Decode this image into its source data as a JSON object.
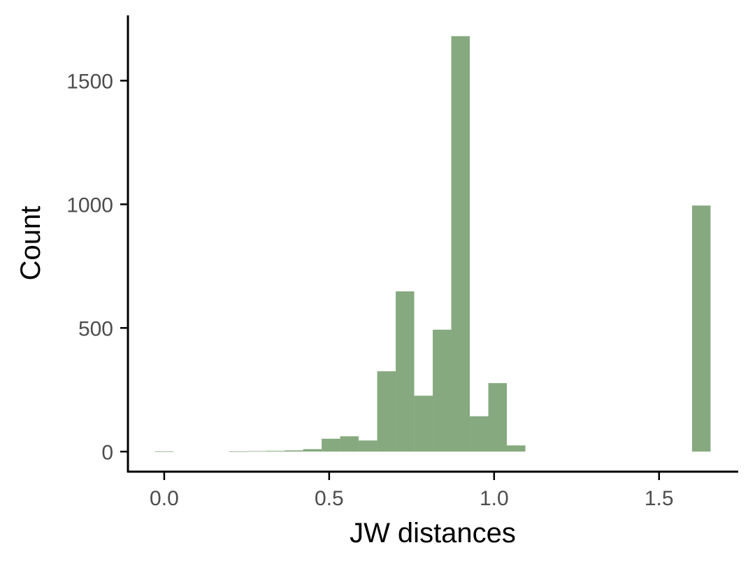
{
  "chart_data": {
    "type": "bar",
    "xlabel": "JW distances",
    "ylabel": "Count",
    "bin_width": 0.05614,
    "bins": [
      {
        "x": 0.0,
        "count": 1
      },
      {
        "x": 0.0561,
        "count": 0
      },
      {
        "x": 0.1123,
        "count": 0
      },
      {
        "x": 0.1684,
        "count": 0
      },
      {
        "x": 0.2246,
        "count": 1
      },
      {
        "x": 0.2807,
        "count": 2
      },
      {
        "x": 0.3368,
        "count": 3
      },
      {
        "x": 0.393,
        "count": 5
      },
      {
        "x": 0.4491,
        "count": 10
      },
      {
        "x": 0.5053,
        "count": 52
      },
      {
        "x": 0.5614,
        "count": 62
      },
      {
        "x": 0.6175,
        "count": 45
      },
      {
        "x": 0.6737,
        "count": 325
      },
      {
        "x": 0.7298,
        "count": 648
      },
      {
        "x": 0.786,
        "count": 226
      },
      {
        "x": 0.8421,
        "count": 493
      },
      {
        "x": 0.8982,
        "count": 1680
      },
      {
        "x": 0.9544,
        "count": 143
      },
      {
        "x": 1.0105,
        "count": 277
      },
      {
        "x": 1.0667,
        "count": 25
      },
      {
        "x": 1.6281,
        "count": 995
      }
    ],
    "x_ticks": [
      0.0,
      0.5,
      1.0,
      1.5
    ],
    "x_tick_labels": [
      "0.0",
      "0.5",
      "1.0",
      "1.5"
    ],
    "y_ticks": [
      0,
      500,
      1000,
      1500
    ],
    "y_tick_labels": [
      "0",
      "500",
      "1000",
      "1500"
    ],
    "xlim": [
      -0.11,
      1.74
    ],
    "ylim": [
      -84,
      1764
    ],
    "bar_color": "#86a97f",
    "grid": false
  }
}
